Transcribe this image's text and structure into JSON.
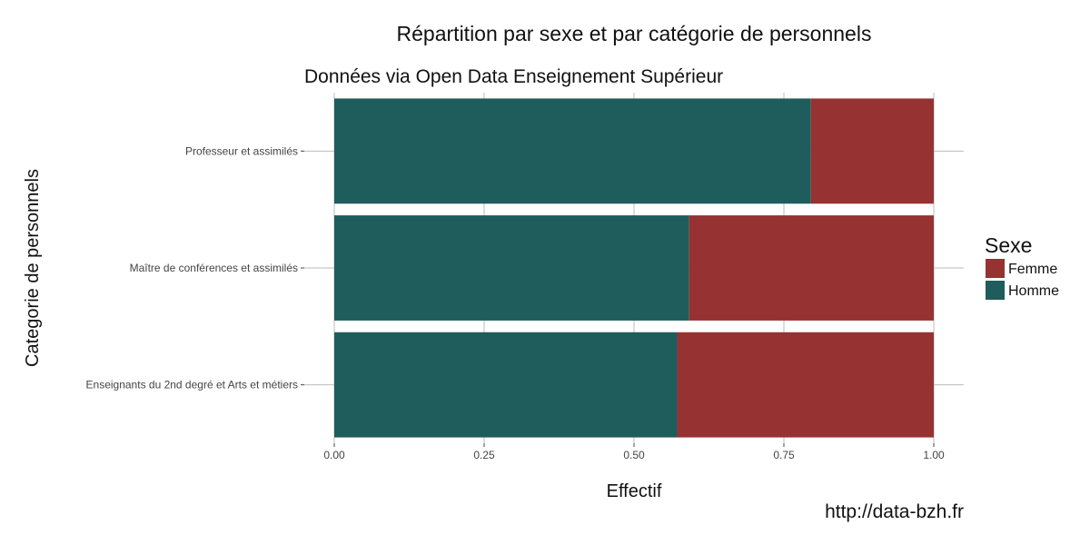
{
  "chart_data": {
    "type": "bar",
    "orientation": "horizontal",
    "stacked": true,
    "title": "Répartition par sexe et par catégorie de personnels",
    "subtitle": "Données via Open Data Enseignement Supérieur",
    "xlabel": "Effectif",
    "ylabel": "Categorie de personnels",
    "xlim": [
      0,
      1
    ],
    "xticks": [
      "0.00",
      "0.25",
      "0.50",
      "0.75",
      "1.00"
    ],
    "xtick_values": [
      0,
      0.25,
      0.5,
      0.75,
      1.0
    ],
    "categories": [
      "Professeur et assimilés",
      "Maître de conférences et assimilés",
      "Enseignants du 2nd degré et Arts et métiers"
    ],
    "series": [
      {
        "name": "Homme",
        "color": "#1f5c5c",
        "values": [
          0.795,
          0.592,
          0.572
        ]
      },
      {
        "name": "Femme",
        "color": "#963232",
        "values": [
          0.205,
          0.408,
          0.428
        ]
      }
    ],
    "legend": {
      "title": "Sexe",
      "position": "right",
      "entries": [
        {
          "label": "Femme",
          "color": "#963232"
        },
        {
          "label": "Homme",
          "color": "#1f5c5c"
        }
      ]
    },
    "grid": true
  },
  "source": "http://data-bzh.fr"
}
